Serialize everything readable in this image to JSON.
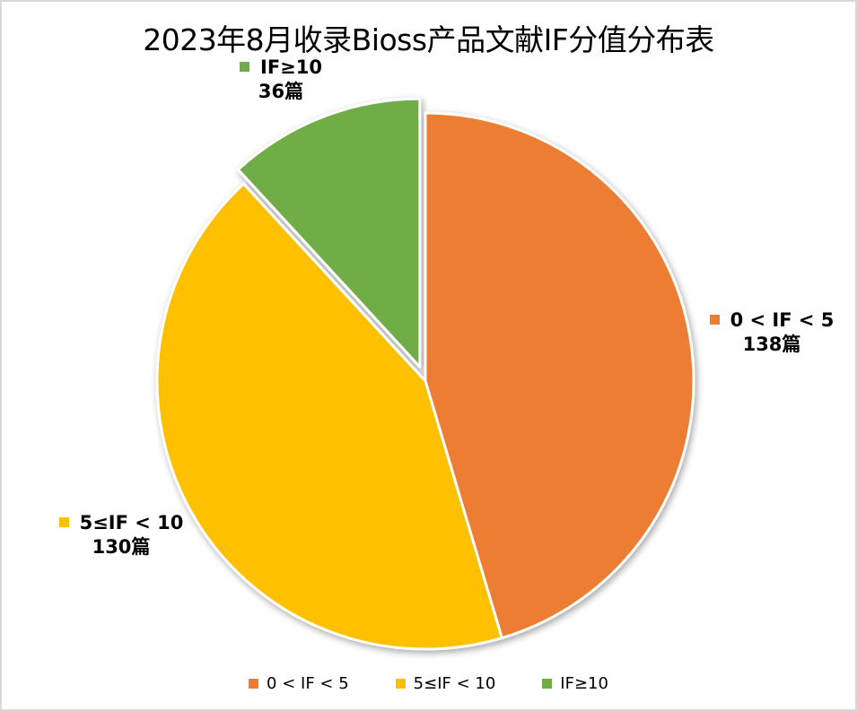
{
  "chart_data": {
    "type": "pie",
    "title": "2023年8月收录Bioss产品文献IF分值分布表",
    "categories": [
      "0 < IF < 5",
      "5≤IF < 10",
      "IF≥10"
    ],
    "values": [
      138,
      130,
      36
    ],
    "unit": "篇",
    "colors": [
      "#ED7D31",
      "#FFC000",
      "#70AD47"
    ],
    "exploded": [
      "IF≥10"
    ],
    "data_labels": [
      {
        "category": "0 < IF < 5",
        "value_text": "138篇"
      },
      {
        "category": "5≤IF < 10",
        "value_text": "130篇"
      },
      {
        "category": "IF≥10",
        "value_text": "36篇"
      }
    ],
    "legend_position": "bottom"
  },
  "labels": {
    "orange_cat": "0 < IF < 5",
    "orange_val": "138篇",
    "yellow_cat": "5≤IF < 10",
    "yellow_val": "130篇",
    "green_cat": "IF≥10",
    "green_val": "36篇"
  },
  "legend": {
    "items": [
      {
        "label": "0 < IF < 5",
        "color": "#ED7D31"
      },
      {
        "label": "5≤IF < 10",
        "color": "#FFC000"
      },
      {
        "label": "IF≥10",
        "color": "#70AD47"
      }
    ]
  }
}
